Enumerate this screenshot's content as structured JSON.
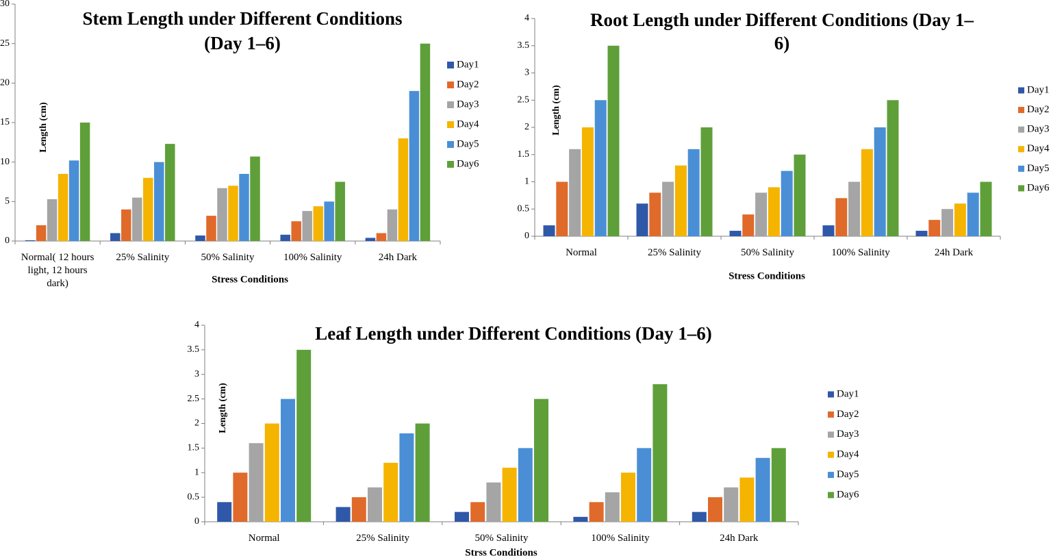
{
  "chart_data": [
    {
      "type": "bar",
      "title_lines": [
        "Stem Length under Different Conditions",
        "(Day 1–6)"
      ],
      "ylabel": "Length (cm)",
      "xlabel": "Stress Conditions",
      "ylim": [
        0,
        30
      ],
      "yticks": [
        "0",
        "5",
        "10",
        "15",
        "20",
        "25",
        "30"
      ],
      "categories": [
        "Normal( 12 hours light, 12 hours dark)",
        "25% Salinity",
        "50% Salinity",
        "100% Salinity",
        "24h Dark"
      ],
      "category_lines": [
        [
          "Normal( 12 hours",
          "light, 12 hours",
          "dark)"
        ],
        [
          "25% Salinity"
        ],
        [
          "50% Salinity"
        ],
        [
          "100% Salinity"
        ],
        [
          "24h Dark"
        ]
      ],
      "legend_position": "right",
      "grid": false,
      "series": [
        {
          "name": "Day1",
          "color": "#2f58a8",
          "values": [
            0.1,
            1.0,
            0.7,
            0.8,
            0.4
          ]
        },
        {
          "name": "Day2",
          "color": "#e06a2a",
          "values": [
            2.0,
            4.0,
            3.2,
            2.5,
            1.0
          ]
        },
        {
          "name": "Day3",
          "color": "#a5a5a5",
          "values": [
            5.3,
            5.5,
            6.7,
            3.8,
            4.0
          ]
        },
        {
          "name": "Day4",
          "color": "#f5b400",
          "values": [
            8.5,
            8.0,
            7.0,
            4.4,
            13.0
          ]
        },
        {
          "name": "Day5",
          "color": "#4a8fd6",
          "values": [
            10.2,
            10.0,
            8.5,
            5.0,
            19.0
          ]
        },
        {
          "name": "Day6",
          "color": "#5f9f3a",
          "values": [
            15.0,
            12.3,
            10.7,
            7.5,
            25.0
          ]
        }
      ]
    },
    {
      "type": "bar",
      "title_lines": [
        "Root Length under Different Conditions (Day 1–",
        "6)"
      ],
      "ylabel": "Length (cm)",
      "xlabel": "Stress Conditions",
      "ylim": [
        0,
        4
      ],
      "yticks": [
        "0",
        "0.5",
        "1",
        "1.5",
        "2",
        "2.5",
        "3",
        "3.5",
        "4"
      ],
      "categories": [
        "Normal",
        "25% Salinity",
        "50% Salinity",
        "100% Salinity",
        "24h Dark"
      ],
      "category_lines": [
        [
          "Normal"
        ],
        [
          "25% Salinity"
        ],
        [
          "50% Salinity"
        ],
        [
          "100% Salinity"
        ],
        [
          "24h Dark"
        ]
      ],
      "legend_position": "right",
      "grid": false,
      "series": [
        {
          "name": "Day1",
          "color": "#2f58a8",
          "values": [
            0.2,
            0.6,
            0.1,
            0.2,
            0.1
          ]
        },
        {
          "name": "Day2",
          "color": "#e06a2a",
          "values": [
            1.0,
            0.8,
            0.4,
            0.7,
            0.3
          ]
        },
        {
          "name": "Day3",
          "color": "#a5a5a5",
          "values": [
            1.6,
            1.0,
            0.8,
            1.0,
            0.5
          ]
        },
        {
          "name": "Day4",
          "color": "#f5b400",
          "values": [
            2.0,
            1.3,
            0.9,
            1.6,
            0.6
          ]
        },
        {
          "name": "Day5",
          "color": "#4a8fd6",
          "values": [
            2.5,
            1.6,
            1.2,
            2.0,
            0.8
          ]
        },
        {
          "name": "Day6",
          "color": "#5f9f3a",
          "values": [
            3.5,
            2.0,
            1.5,
            2.5,
            1.0
          ]
        }
      ]
    },
    {
      "type": "bar",
      "title_lines": [
        "Leaf Length under Different Conditions (Day 1–6)"
      ],
      "ylabel": "Length (cm)",
      "xlabel": "Strss Conditions",
      "ylim": [
        0,
        4
      ],
      "yticks": [
        "0",
        "0.5",
        "1",
        "1.5",
        "2",
        "2.5",
        "3",
        "3.5",
        "4"
      ],
      "categories": [
        "Normal",
        "25% Salinity",
        "50% Salinity",
        "100% Salinity",
        "24h Dark"
      ],
      "category_lines": [
        [
          "Normal"
        ],
        [
          "25% Salinity"
        ],
        [
          "50% Salinity"
        ],
        [
          "100% Salinity"
        ],
        [
          "24h Dark"
        ]
      ],
      "legend_position": "right",
      "grid": false,
      "series": [
        {
          "name": "Day1",
          "color": "#2f58a8",
          "values": [
            0.4,
            0.3,
            0.2,
            0.1,
            0.2
          ]
        },
        {
          "name": "Day2",
          "color": "#e06a2a",
          "values": [
            1.0,
            0.5,
            0.4,
            0.4,
            0.5
          ]
        },
        {
          "name": "Day3",
          "color": "#a5a5a5",
          "values": [
            1.6,
            0.7,
            0.8,
            0.6,
            0.7
          ]
        },
        {
          "name": "Day4",
          "color": "#f5b400",
          "values": [
            2.0,
            1.2,
            1.1,
            1.0,
            0.9
          ]
        },
        {
          "name": "Day5",
          "color": "#4a8fd6",
          "values": [
            2.5,
            1.8,
            1.5,
            1.5,
            1.3
          ]
        },
        {
          "name": "Day6",
          "color": "#5f9f3a",
          "values": [
            3.5,
            2.0,
            2.5,
            2.8,
            1.5
          ]
        }
      ]
    }
  ]
}
